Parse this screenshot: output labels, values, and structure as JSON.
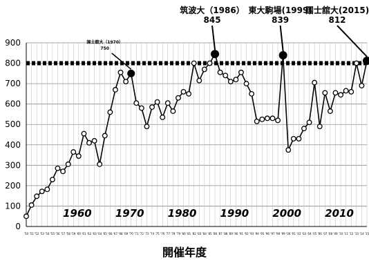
{
  "chart_data": {
    "type": "line",
    "title": "",
    "xlabel": "開催年度",
    "ylabel": "",
    "ylim": [
      0,
      900
    ],
    "yticks": [
      0,
      100,
      200,
      300,
      400,
      500,
      600,
      700,
      800,
      900
    ],
    "x": [
      1950,
      1951,
      1952,
      1953,
      1954,
      1955,
      1956,
      1957,
      1958,
      1959,
      1960,
      1961,
      1962,
      1963,
      1964,
      1965,
      1966,
      1967,
      1968,
      1969,
      1970,
      1971,
      1972,
      1973,
      1974,
      1975,
      1976,
      1977,
      1978,
      1979,
      1980,
      1981,
      1982,
      1983,
      1984,
      1985,
      1986,
      1987,
      1988,
      1989,
      1990,
      1991,
      1992,
      1993,
      1994,
      1995,
      1996,
      1997,
      1998,
      1999,
      2000,
      2001,
      2002,
      2003,
      2004,
      2005,
      2006,
      2007,
      2008,
      2009,
      2010,
      2011,
      2012,
      2013,
      2014,
      2015
    ],
    "x_tick_labels": [
      "'50",
      "'51",
      "'52",
      "'53",
      "'54",
      "'55",
      "'56",
      "'57",
      "'58",
      "'59",
      "'60",
      "'61",
      "'62",
      "'63",
      "'64",
      "'65",
      "'66",
      "'67",
      "'68",
      "'69",
      "'70",
      "'71",
      "'72",
      "'73",
      "'74",
      "'75",
      "'76",
      "'77",
      "'78",
      "'79",
      "'80",
      "'81",
      "'82",
      "'83",
      "'84",
      "'85",
      "'86",
      "'87",
      "'88",
      "'89",
      "'90",
      "'91",
      "'92",
      "'93",
      "'94",
      "'95",
      "'96",
      "'97",
      "'98",
      "'99",
      "'00",
      "'01",
      "'02",
      "'03",
      "'04",
      "'05",
      "'06",
      "'07",
      "'08",
      "'09",
      "'10",
      "'11",
      "'12",
      "'13",
      "'14",
      "'15"
    ],
    "decade_labels": [
      {
        "x": 1960,
        "text": "1960"
      },
      {
        "x": 1970,
        "text": "1970"
      },
      {
        "x": 1980,
        "text": "1980"
      },
      {
        "x": 1990,
        "text": "1990"
      },
      {
        "x": 2000,
        "text": "2000"
      },
      {
        "x": 2010,
        "text": "2010"
      }
    ],
    "series": [
      {
        "values": [
          50,
          105,
          148,
          172,
          182,
          230,
          285,
          270,
          305,
          365,
          345,
          455,
          410,
          420,
          305,
          445,
          560,
          670,
          755,
          710,
          750,
          605,
          580,
          490,
          585,
          610,
          535,
          605,
          565,
          630,
          660,
          650,
          800,
          715,
          770,
          800,
          845,
          755,
          740,
          710,
          720,
          755,
          700,
          650,
          515,
          525,
          530,
          530,
          520,
          839,
          375,
          430,
          430,
          480,
          510,
          705,
          490,
          655,
          565,
          655,
          645,
          665,
          660,
          800,
          690,
          812
        ],
        "color": "#000000"
      }
    ],
    "reference_line": {
      "y": 800,
      "style": "dotted"
    },
    "highlights": [
      {
        "x": 1970,
        "y": 750,
        "name": "国士舘大（1970）",
        "label": "750",
        "size": "small"
      },
      {
        "x": 1986,
        "y": 845,
        "name": "筑波大（1986）",
        "label": "845",
        "size": "large"
      },
      {
        "x": 1999,
        "y": 839,
        "name": "東大駒場(1999)",
        "label": "839",
        "size": "large"
      },
      {
        "x": 2015,
        "y": 812,
        "name": "国士舘大(2015)",
        "label": "812",
        "size": "large"
      }
    ],
    "grid": true,
    "legend": "none"
  }
}
